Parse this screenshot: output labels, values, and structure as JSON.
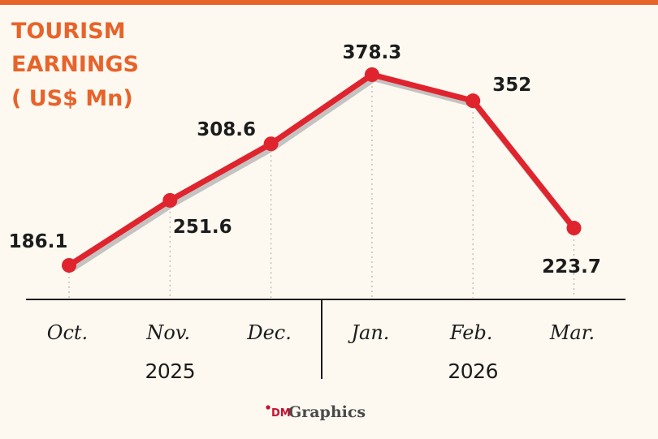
{
  "chart_data": {
    "type": "line",
    "title_lines": [
      "TOURISM",
      "EARNINGS",
      "( US$ Mn)"
    ],
    "categories": [
      "Oct.",
      "Nov.",
      "Dec.",
      "Jan.",
      "Feb.",
      "Mar."
    ],
    "values": [
      186.1,
      251.6,
      308.6,
      378.3,
      352,
      223.7
    ],
    "value_labels": [
      "186.1",
      "251.6",
      "308.6",
      "378.3",
      "352",
      "223.7"
    ],
    "year_groups": [
      {
        "label": "2025",
        "categories": [
          "Oct.",
          "Nov.",
          "Dec."
        ]
      },
      {
        "label": "2026",
        "categories": [
          "Jan.",
          "Feb.",
          "Mar."
        ]
      }
    ],
    "xlabel": "",
    "ylabel": "",
    "ylim": [
      0,
      400
    ],
    "grid": false,
    "legend": "none"
  },
  "colors": {
    "accent": "#e8632a",
    "line": "#e0242e",
    "shadow": "#b5b5b5",
    "text": "#1c1c1c",
    "background": "#fdf9f1"
  },
  "credit": {
    "prefix": "DM",
    "suffix": "Graphics"
  }
}
